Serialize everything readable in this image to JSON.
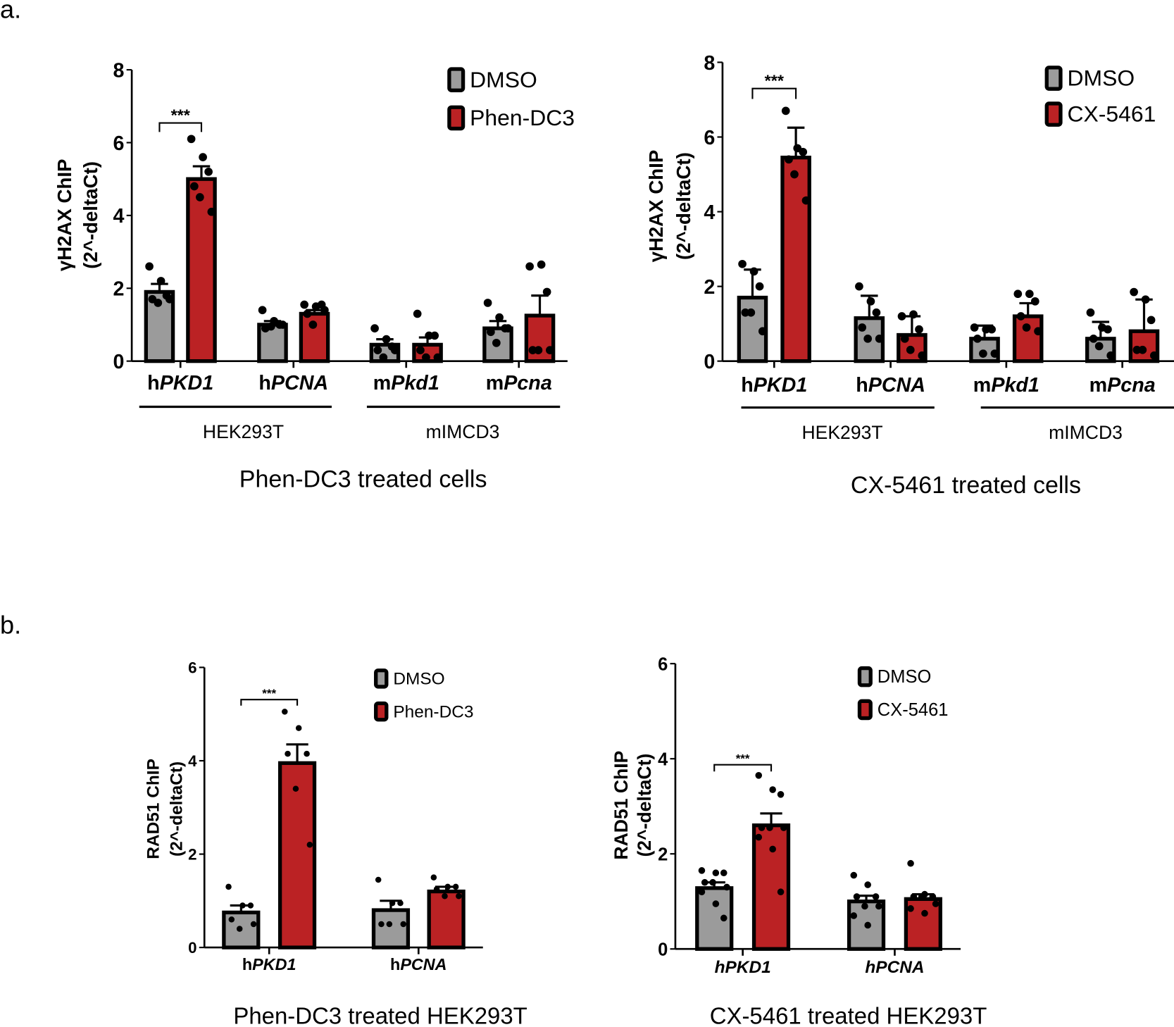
{
  "panel_labels": [
    "a.",
    "b."
  ],
  "colors": {
    "dmso": "#9b9b9b",
    "treated": "#bb2224",
    "stroke": "#000000"
  },
  "chart_data": [
    {
      "type": "bar",
      "title": "Phen-DC3 treated cells",
      "ylabel": [
        "γH2AX ChIP",
        "(2^-deltaCt)"
      ],
      "ylim": [
        0,
        8
      ],
      "yticks": [
        0,
        2,
        4,
        6,
        8
      ],
      "categories": [
        "hPKD1",
        "hPCNA",
        "mPkd1",
        "mPcna"
      ],
      "groups": [
        {
          "label": "HEK293T",
          "categories": [
            "hPKD1",
            "hPCNA"
          ]
        },
        {
          "label": "mIMCD3",
          "categories": [
            "mPkd1",
            "mPcna"
          ]
        }
      ],
      "legend": [
        "DMSO",
        "Phen-DC3"
      ],
      "legend_position": "top-right",
      "significance": [
        {
          "category": "hPKD1",
          "label": "***"
        }
      ],
      "series": [
        {
          "name": "DMSO",
          "values": [
            1.9,
            1.0,
            0.45,
            0.9
          ],
          "sem": [
            0.22,
            0.1,
            0.15,
            0.2
          ],
          "points": [
            [
              2.6,
              2.2,
              1.8,
              1.7,
              1.6,
              1.7
            ],
            [
              1.4,
              1.1,
              1.0,
              0.9,
              0.95,
              1.0
            ],
            [
              0.9,
              0.6,
              0.4,
              0.3,
              0.1,
              0.3
            ],
            [
              1.6,
              1.2,
              0.9,
              0.8,
              0.5,
              0.9
            ]
          ]
        },
        {
          "name": "Phen-DC3",
          "values": [
            5.0,
            1.3,
            0.45,
            1.25
          ],
          "sem": [
            0.35,
            0.1,
            0.2,
            0.55
          ],
          "points": [
            [
              6.1,
              5.6,
              5.2,
              4.8,
              4.5,
              4.1
            ],
            [
              1.55,
              1.5,
              1.55,
              1.3,
              1.0,
              1.4
            ],
            [
              1.3,
              0.7,
              0.7,
              0.3,
              0.1,
              0.1
            ],
            [
              2.6,
              2.65,
              1.9,
              0.3,
              0.3,
              0.3
            ]
          ]
        }
      ]
    },
    {
      "type": "bar",
      "title": "CX-5461 treated cells",
      "ylabel": [
        "γH2AX ChIP",
        "(2^-deltaCt)"
      ],
      "ylim": [
        0,
        8
      ],
      "yticks": [
        0,
        2,
        4,
        6,
        8
      ],
      "categories": [
        "hPKD1",
        "hPCNA",
        "mPkd1",
        "mPcna"
      ],
      "groups": [
        {
          "label": "HEK293T",
          "categories": [
            "hPKD1",
            "hPCNA"
          ]
        },
        {
          "label": "mIMCD3",
          "categories": [
            "mPkd1",
            "mPcna"
          ]
        }
      ],
      "legend": [
        "DMSO",
        "CX-5461"
      ],
      "legend_position": "top-right",
      "significance": [
        {
          "category": "hPKD1",
          "label": "***"
        }
      ],
      "series": [
        {
          "name": "DMSO",
          "values": [
            1.7,
            1.15,
            0.6,
            0.6
          ],
          "sem": [
            0.75,
            0.6,
            0.35,
            0.45
          ],
          "points": [
            [
              2.6,
              2.4,
              2.0,
              1.3,
              1.3,
              0.8
            ],
            [
              2.0,
              1.6,
              1.3,
              0.9,
              0.6,
              0.6
            ],
            [
              0.9,
              0.85,
              0.85,
              0.6,
              0.2,
              0.2
            ],
            [
              1.3,
              0.9,
              0.85,
              0.6,
              0.4,
              0.15
            ]
          ]
        },
        {
          "name": "CX-5461",
          "values": [
            5.45,
            0.7,
            1.2,
            0.8
          ],
          "sem": [
            0.8,
            0.5,
            0.35,
            0.85
          ],
          "points": [
            [
              6.7,
              5.7,
              5.6,
              5.4,
              5.0,
              4.3
            ],
            [
              1.2,
              1.25,
              0.85,
              0.6,
              0.3,
              0.15
            ],
            [
              1.8,
              1.8,
              1.6,
              1.2,
              0.9,
              0.8
            ],
            [
              1.85,
              1.65,
              1.1,
              0.3,
              0.3,
              0.15
            ]
          ]
        }
      ]
    },
    {
      "type": "bar",
      "title": "Phen-DC3 treated HEK293T",
      "ylabel": [
        "RAD51 ChIP",
        "(2^-deltaCt)"
      ],
      "ylim": [
        0,
        6
      ],
      "yticks": [
        0,
        2,
        4,
        6
      ],
      "categories": [
        "hPKD1",
        "hPCNA"
      ],
      "legend": [
        "DMSO",
        "Phen-DC3"
      ],
      "legend_position": "top-right",
      "significance": [
        {
          "category": "hPKD1",
          "label": "***"
        }
      ],
      "series": [
        {
          "name": "DMSO",
          "values": [
            0.75,
            0.8
          ],
          "sem": [
            0.15,
            0.2
          ],
          "points": [
            [
              1.3,
              0.9,
              0.9,
              0.6,
              0.4,
              0.5
            ],
            [
              1.45,
              0.95,
              0.95,
              0.5,
              0.5,
              0.5
            ]
          ]
        },
        {
          "name": "Phen-DC3",
          "values": [
            3.95,
            1.2
          ],
          "sem": [
            0.4,
            0.1
          ],
          "points": [
            [
              5.05,
              4.7,
              4.15,
              4.15,
              3.4,
              2.2
            ],
            [
              1.5,
              1.3,
              1.3,
              1.25,
              1.1,
              1.1
            ]
          ]
        }
      ]
    },
    {
      "type": "bar",
      "title": "CX-5461 treated HEK293T",
      "ylabel": [
        "RAD51 ChIP",
        "(2^-deltaCt)"
      ],
      "ylim": [
        0,
        6
      ],
      "yticks": [
        0,
        2,
        4,
        6
      ],
      "categories": [
        "hPKD1",
        "hPCNA"
      ],
      "legend": [
        "DMSO",
        "CX-5461"
      ],
      "legend_position": "top-right",
      "significance": [
        {
          "category": "hPKD1",
          "label": "***"
        }
      ],
      "series": [
        {
          "name": "DMSO",
          "values": [
            1.28,
            1.0
          ],
          "sem": [
            0.12,
            0.12
          ],
          "points": [
            [
              1.65,
              1.6,
              1.6,
              1.4,
              1.4,
              1.3,
              1.2,
              0.95,
              0.65
            ],
            [
              1.55,
              1.35,
              1.1,
              1.1,
              0.9,
              0.9,
              0.7,
              0.5
            ]
          ]
        },
        {
          "name": "CX-5461",
          "values": [
            2.6,
            1.05
          ],
          "sem": [
            0.25,
            0.1
          ],
          "points": [
            [
              3.65,
              3.35,
              3.25,
              2.55,
              2.55,
              2.55,
              2.35,
              2.1,
              1.2
            ],
            [
              1.8,
              1.15,
              1.1,
              1.1,
              1.1,
              0.95,
              0.85,
              0.75
            ]
          ]
        }
      ]
    }
  ]
}
